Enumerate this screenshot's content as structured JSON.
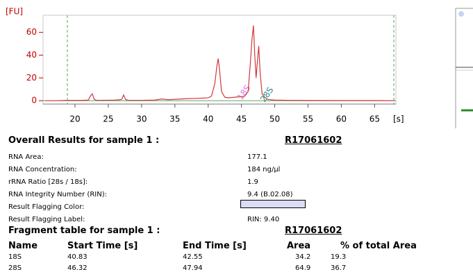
{
  "chart_data": {
    "type": "line",
    "ylabel": "[FU]",
    "xlabel": "[s]",
    "x": [
      15.5,
      17,
      19,
      20,
      21,
      22,
      22.3,
      22.6,
      22.9,
      23.3,
      25,
      26,
      27,
      27.3,
      27.6,
      28,
      30,
      32,
      33,
      34,
      35,
      36,
      37,
      38,
      39,
      40,
      40.5,
      41,
      41.3,
      41.5,
      41.7,
      42,
      42.5,
      43,
      44,
      45,
      45.5,
      46,
      46.3,
      46.6,
      46.8,
      47,
      47.2,
      47.4,
      47.6,
      47.8,
      48.1,
      48.5,
      49,
      50,
      52,
      55,
      60,
      65,
      68
    ],
    "series": [
      {
        "color": "#d0383c",
        "values": [
          0,
          0,
          0.3,
          0.2,
          0.3,
          0.5,
          4,
          6,
          1,
          0.3,
          0.4,
          0.5,
          1,
          5,
          1,
          0.4,
          0.3,
          0.5,
          1.5,
          0.8,
          1.2,
          1.5,
          1.8,
          2,
          2.2,
          2.5,
          4,
          15,
          30,
          37,
          28,
          8,
          3,
          2.5,
          3,
          3.5,
          4,
          8,
          30,
          55,
          66,
          40,
          20,
          35,
          48,
          25,
          6,
          3,
          1,
          0.5,
          0.3,
          0.2,
          0.1,
          0.1,
          0
        ]
      }
    ],
    "xlim": [
      15.2,
      68.2
    ],
    "ylim": [
      -3,
      75
    ],
    "xticks": [
      20,
      25,
      30,
      35,
      40,
      45,
      50,
      55,
      60,
      65
    ],
    "yticks": [
      0,
      20,
      40,
      60
    ],
    "annotations": [
      "18S",
      "28S"
    ]
  },
  "overall": {
    "title": "Overall Results for sample 1 :",
    "sample": "R17061602",
    "rows": [
      [
        "RNA Area:",
        "177.1"
      ],
      [
        "RNA Concentration:",
        "184 ng/µl"
      ],
      [
        "rRNA Ratio [28s / 18s]:",
        "1.9"
      ],
      [
        "RNA Integrity Number (RIN):",
        "9.4  (B.02.08)"
      ],
      [
        "Result Flagging Color:"
      ],
      [
        "Result Flagging Label:",
        "RIN: 9.40"
      ]
    ],
    "flag_color": "#dcdcf6"
  },
  "fragments": {
    "title": "Fragment table for sample 1 :",
    "sample": "R17061602",
    "header": [
      "Name",
      "Start Time [s]",
      "End Time [s]",
      "Area",
      "% of total Area"
    ],
    "rows": [
      [
        "18S",
        "40.83",
        "42.55",
        "34.2",
        "19.3"
      ],
      [
        "28S",
        "46.32",
        "47.94",
        "64.9",
        "36.7"
      ]
    ]
  }
}
